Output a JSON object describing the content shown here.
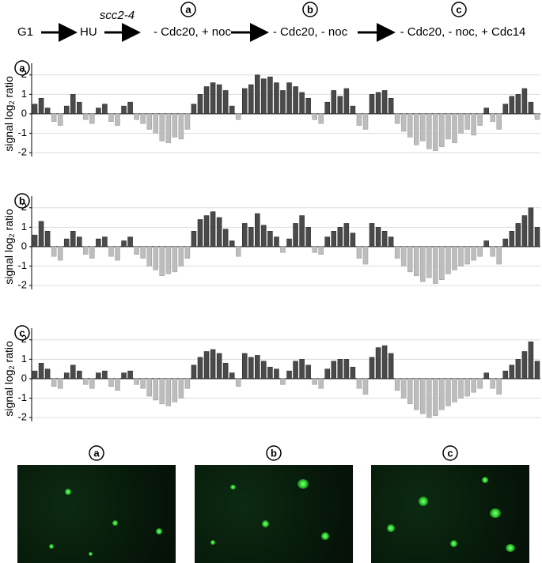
{
  "header": {
    "steps": [
      "G1",
      "HU",
      "- Cdc20, + noc",
      "- Cdc20, - noc",
      "- Cdc20, - noc, + Cdc14"
    ],
    "strain": "scc2-4",
    "markers": [
      "a",
      "b",
      "c"
    ]
  },
  "chart_data": [
    {
      "type": "bar",
      "label": "a",
      "y_label": {
        "main": "signal log",
        "sub": "2",
        "rest": "ratio"
      },
      "values": [
        0.5,
        0.8,
        0.3,
        -0.4,
        -0.6,
        0.4,
        1.0,
        0.6,
        -0.3,
        -0.5,
        0.3,
        0.5,
        -0.4,
        -0.6,
        0.4,
        0.6,
        -0.3,
        -0.5,
        -0.8,
        -1.0,
        -1.4,
        -1.5,
        -1.2,
        -1.3,
        -0.8,
        0.5,
        1.0,
        1.4,
        1.6,
        1.5,
        1.2,
        0.4,
        -0.3,
        1.3,
        1.5,
        2.0,
        1.8,
        1.9,
        1.6,
        1.2,
        1.6,
        1.4,
        1.1,
        0.8,
        -0.3,
        -0.5,
        0.6,
        1.2,
        0.9,
        1.3,
        0.4,
        -0.6,
        -0.8,
        1.0,
        1.1,
        1.2,
        0.8,
        -0.5,
        -0.9,
        -1.2,
        -1.6,
        -1.4,
        -1.8,
        -1.9,
        -1.7,
        -1.3,
        -1.5,
        -1.0,
        -0.8,
        -1.1,
        -0.6,
        0.3,
        -0.4,
        -0.8,
        0.5,
        0.9,
        1.0,
        1.3,
        0.6,
        -0.3
      ],
      "ylim": [
        -2.2,
        2.6
      ],
      "yticks": [
        -2,
        -1,
        0,
        1,
        2
      ],
      "grid": true,
      "positive_color": "#4a4a4a",
      "negative_color": "#bdbdbd"
    },
    {
      "type": "bar",
      "label": "b",
      "y_label": {
        "main": "signal log",
        "sub": "2",
        "rest": "ratio"
      },
      "values": [
        0.6,
        1.3,
        0.8,
        -0.5,
        -0.7,
        0.4,
        0.8,
        0.5,
        -0.4,
        -0.6,
        0.4,
        0.5,
        -0.5,
        -0.7,
        0.3,
        0.5,
        -0.4,
        -0.6,
        -1.0,
        -1.2,
        -1.5,
        -1.4,
        -1.3,
        -1.0,
        -0.6,
        0.8,
        1.4,
        1.6,
        1.8,
        1.5,
        0.9,
        0.3,
        -0.5,
        1.2,
        1.0,
        1.7,
        1.1,
        0.8,
        0.5,
        -0.3,
        0.4,
        1.2,
        1.6,
        1.0,
        -0.3,
        -0.4,
        0.5,
        0.8,
        1.0,
        1.2,
        0.7,
        -0.6,
        -0.9,
        1.2,
        1.0,
        0.8,
        0.5,
        -0.6,
        -1.0,
        -1.3,
        -1.5,
        -1.8,
        -1.6,
        -1.9,
        -1.7,
        -1.4,
        -1.2,
        -1.0,
        -0.9,
        -0.7,
        -0.5,
        0.3,
        -0.5,
        -0.9,
        0.4,
        0.8,
        1.2,
        1.6,
        2.0,
        1.0
      ],
      "ylim": [
        -2.2,
        2.6
      ],
      "yticks": [
        -2,
        -1,
        0,
        1,
        2
      ],
      "grid": true,
      "positive_color": "#4a4a4a",
      "negative_color": "#bdbdbd"
    },
    {
      "type": "bar",
      "label": "c",
      "y_label": {
        "main": "signal log",
        "sub": "2",
        "rest": "ratio"
      },
      "values": [
        0.4,
        0.8,
        0.5,
        -0.4,
        -0.5,
        0.3,
        0.7,
        0.4,
        -0.3,
        -0.5,
        0.3,
        0.4,
        -0.4,
        -0.6,
        0.3,
        0.4,
        -0.3,
        -0.5,
        -0.9,
        -1.1,
        -1.3,
        -1.4,
        -1.2,
        -1.0,
        -0.5,
        0.7,
        1.1,
        1.4,
        1.5,
        1.3,
        0.8,
        0.3,
        -0.4,
        1.3,
        1.1,
        1.2,
        0.9,
        0.6,
        0.5,
        -0.3,
        0.4,
        0.9,
        1.0,
        0.7,
        -0.3,
        -0.5,
        0.5,
        0.9,
        1.0,
        1.0,
        0.6,
        -0.5,
        -0.8,
        1.1,
        1.6,
        1.7,
        1.3,
        -0.6,
        -1.0,
        -1.3,
        -1.6,
        -1.8,
        -2.0,
        -1.9,
        -1.6,
        -1.4,
        -1.2,
        -1.0,
        -0.9,
        -0.7,
        -0.5,
        0.3,
        -0.5,
        -0.8,
        0.4,
        0.7,
        1.0,
        1.4,
        1.9,
        0.9
      ],
      "ylim": [
        -2.2,
        2.6
      ],
      "yticks": [
        -2,
        -1,
        0,
        1,
        2
      ],
      "grid": true,
      "positive_color": "#4a4a4a",
      "negative_color": "#bdbdbd"
    }
  ],
  "images": [
    {
      "label": "a"
    },
    {
      "label": "b"
    },
    {
      "label": "c"
    }
  ]
}
